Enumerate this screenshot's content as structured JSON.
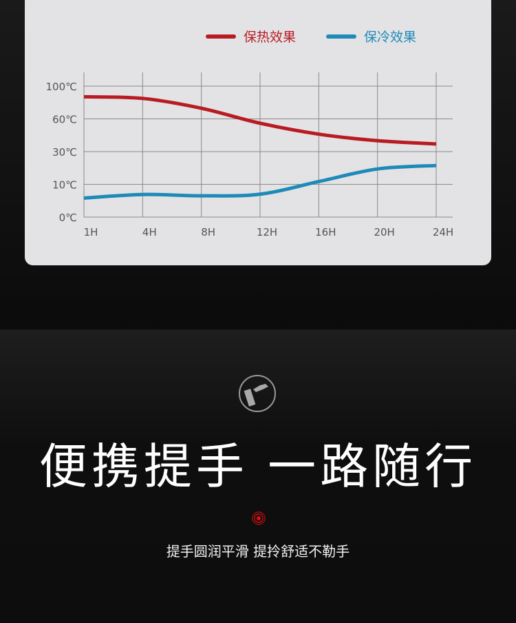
{
  "chart_data": {
    "type": "line",
    "x": [
      "1H",
      "4H",
      "8H",
      "12H",
      "16H",
      "20H",
      "24H"
    ],
    "y_ticks": [
      "0℃",
      "10℃",
      "30℃",
      "60℃",
      "100℃"
    ],
    "y_tick_values": [
      0,
      10,
      30,
      60,
      100
    ],
    "grid": true,
    "legend": "top-right",
    "series": [
      {
        "name": "保热效果",
        "color": "#b81c22",
        "values": [
          87,
          85,
          73,
          56,
          46,
          40,
          37
        ]
      },
      {
        "name": "保冷效果",
        "color": "#1e8ab8",
        "values": [
          5.8,
          6.9,
          6.5,
          7,
          11.7,
          19.4,
          21.5
        ]
      }
    ]
  },
  "feature": {
    "icon": "hand-holding-cup-icon",
    "headline": "便携提手 一路随行",
    "marker_icon": "red-target-icon",
    "marker_color": "#e01010",
    "subtitle": "提手圆润平滑 提拎舒适不勒手"
  }
}
